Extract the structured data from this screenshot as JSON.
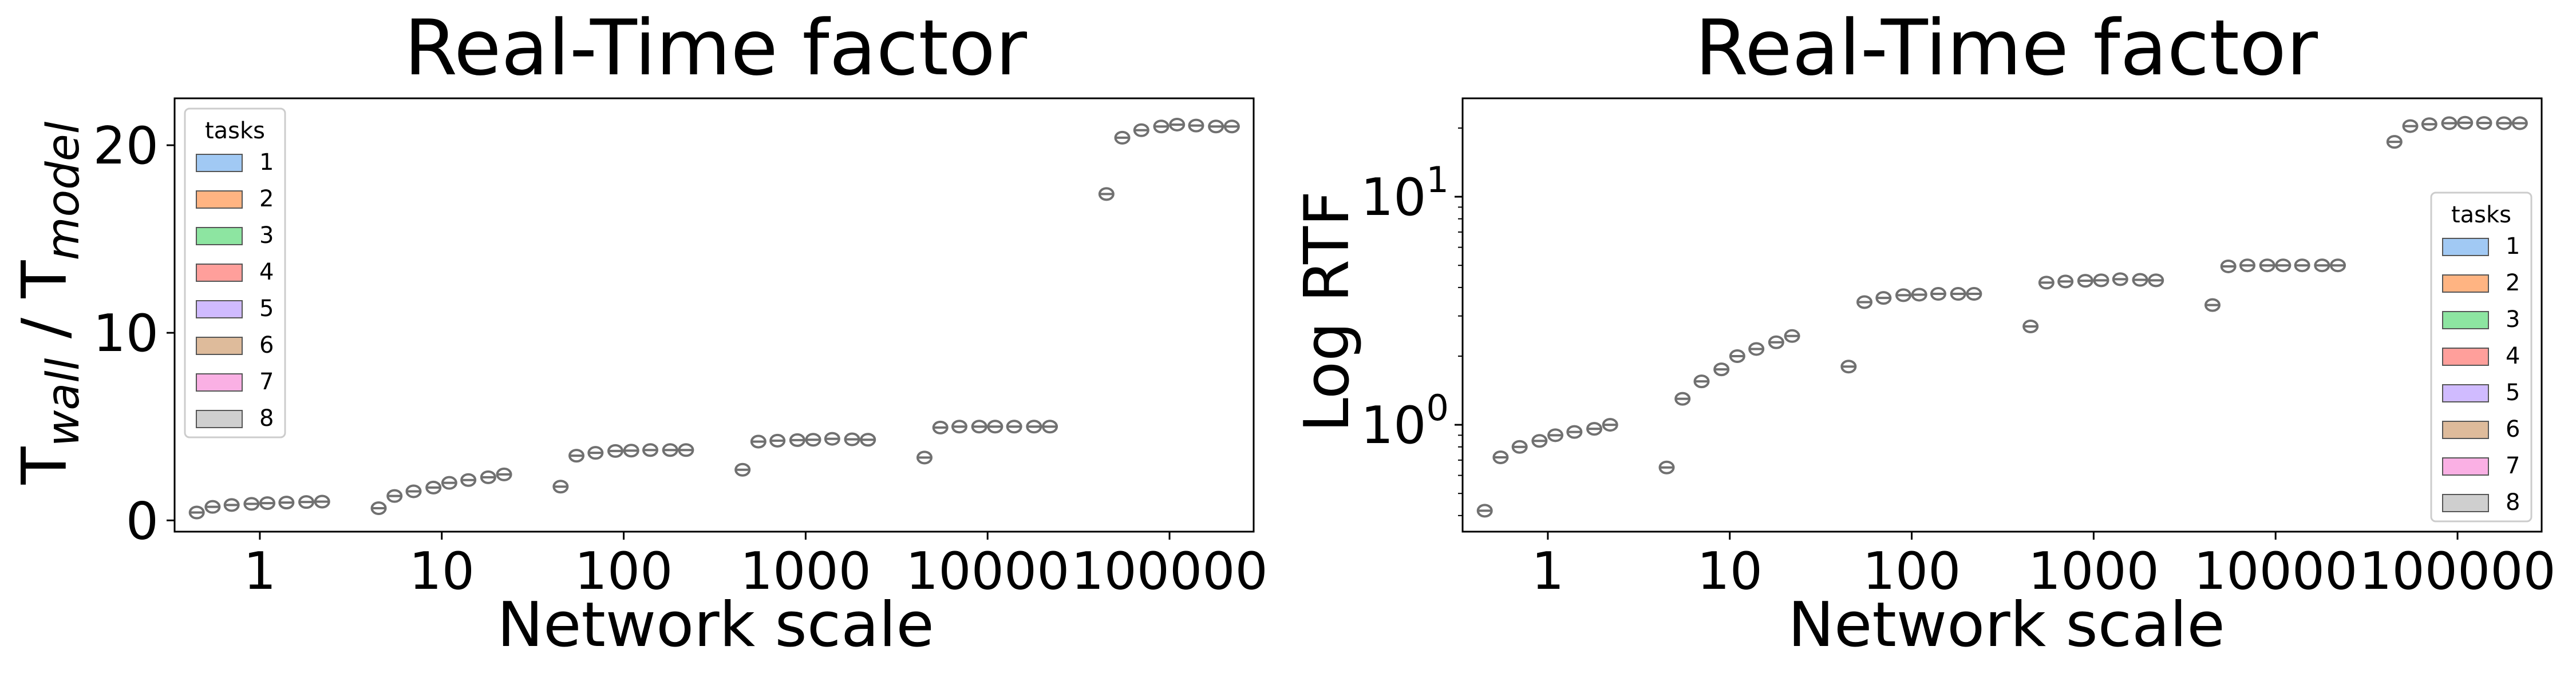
{
  "chart_data": [
    {
      "type": "box",
      "title": "Real-Time factor",
      "xlabel": "Network scale",
      "ylabel": "T_wall / T_model",
      "ylabel_parts": {
        "base1": "T",
        "sub1": "wall",
        "sep": " / ",
        "base2": "T",
        "sub2": "model"
      },
      "yscale": "linear",
      "ylim": [
        -0.6,
        22.5
      ],
      "yticks": [
        0,
        10,
        20
      ],
      "xscale": "log",
      "xlim": [
        0.34,
        290000
      ],
      "xticks": [
        1,
        10,
        100,
        1000,
        10000,
        100000
      ],
      "xtick_labels": [
        "1",
        "10",
        "100",
        "1000",
        "10000",
        "100000"
      ],
      "legend": {
        "title": "tasks",
        "position": "upper-left",
        "entries": [
          "1",
          "2",
          "3",
          "4",
          "5",
          "6",
          "7",
          "8"
        ]
      },
      "series": [
        {
          "x": [
            0.45,
            0.55,
            0.7,
            0.9,
            1.1,
            1.4,
            1.8,
            2.2
          ],
          "y": [
            0.42,
            0.72,
            0.82,
            0.88,
            0.92,
            0.95,
            0.98,
            1.0
          ]
        },
        {
          "x": [
            4.5,
            5.5,
            7,
            9,
            11,
            14,
            18,
            22
          ],
          "y": [
            0.65,
            1.3,
            1.55,
            1.75,
            2.0,
            2.15,
            2.3,
            2.45
          ]
        },
        {
          "x": [
            45,
            55,
            70,
            90,
            110,
            140,
            180,
            220
          ],
          "y": [
            1.8,
            3.45,
            3.6,
            3.7,
            3.72,
            3.75,
            3.75,
            3.75
          ]
        },
        {
          "x": [
            450,
            550,
            700,
            900,
            1100,
            1400,
            1800,
            2200
          ],
          "y": [
            2.7,
            4.2,
            4.25,
            4.28,
            4.3,
            4.35,
            4.32,
            4.3
          ]
        },
        {
          "x": [
            4500,
            5500,
            7000,
            9000,
            11000,
            14000,
            18000,
            22000
          ],
          "y": [
            3.35,
            4.95,
            5.0,
            5.0,
            5.0,
            5.0,
            5.0,
            5.0
          ]
        },
        {
          "x": [
            45000,
            55000,
            70000,
            90000,
            110000,
            140000,
            180000,
            220000
          ],
          "y": [
            17.4,
            20.4,
            20.8,
            21.0,
            21.1,
            21.05,
            21.0,
            21.0
          ]
        }
      ]
    },
    {
      "type": "box",
      "title": "Real-Time factor",
      "xlabel": "Network scale",
      "ylabel": "Log RTF",
      "yscale": "log",
      "ylim": [
        0.34,
        27
      ],
      "yticks": [
        1,
        10
      ],
      "ytick_labels": [
        {
          "base": "10",
          "exp": "0"
        },
        {
          "base": "10",
          "exp": "1"
        }
      ],
      "xscale": "log",
      "xlim": [
        0.34,
        290000
      ],
      "xticks": [
        1,
        10,
        100,
        1000,
        10000,
        100000
      ],
      "xtick_labels": [
        "1",
        "10",
        "100",
        "1000",
        "10000",
        "100000"
      ],
      "legend": {
        "title": "tasks",
        "position": "lower-right",
        "entries": [
          "1",
          "2",
          "3",
          "4",
          "5",
          "6",
          "7",
          "8"
        ]
      },
      "series": [
        {
          "x": [
            0.45,
            0.55,
            0.7,
            0.9,
            1.1,
            1.4,
            1.8,
            2.2
          ],
          "y": [
            0.42,
            0.72,
            0.8,
            0.85,
            0.9,
            0.93,
            0.96,
            1.0
          ]
        },
        {
          "x": [
            4.5,
            5.5,
            7,
            9,
            11,
            14,
            18,
            22
          ],
          "y": [
            0.65,
            1.3,
            1.55,
            1.75,
            2.0,
            2.15,
            2.3,
            2.45
          ]
        },
        {
          "x": [
            45,
            55,
            70,
            90,
            110,
            140,
            180,
            220
          ],
          "y": [
            1.8,
            3.45,
            3.6,
            3.7,
            3.72,
            3.75,
            3.75,
            3.75
          ]
        },
        {
          "x": [
            450,
            550,
            700,
            900,
            1100,
            1400,
            1800,
            2200
          ],
          "y": [
            2.7,
            4.2,
            4.25,
            4.28,
            4.3,
            4.35,
            4.32,
            4.3
          ]
        },
        {
          "x": [
            4500,
            5500,
            7000,
            9000,
            11000,
            14000,
            18000,
            22000
          ],
          "y": [
            3.35,
            4.95,
            5.0,
            5.0,
            5.0,
            5.0,
            5.0,
            5.0
          ]
        },
        {
          "x": [
            45000,
            55000,
            70000,
            90000,
            110000,
            140000,
            180000,
            220000
          ],
          "y": [
            17.4,
            20.4,
            20.8,
            21.0,
            21.1,
            21.05,
            21.0,
            21.0
          ]
        }
      ]
    }
  ],
  "colors": {
    "box_outline": "#707070",
    "legend_patches": [
      "#a1c9f4",
      "#ffb482",
      "#8de5a1",
      "#ff9f9b",
      "#d0bbff",
      "#debb9b",
      "#fab0e4",
      "#cfcfcf"
    ]
  }
}
